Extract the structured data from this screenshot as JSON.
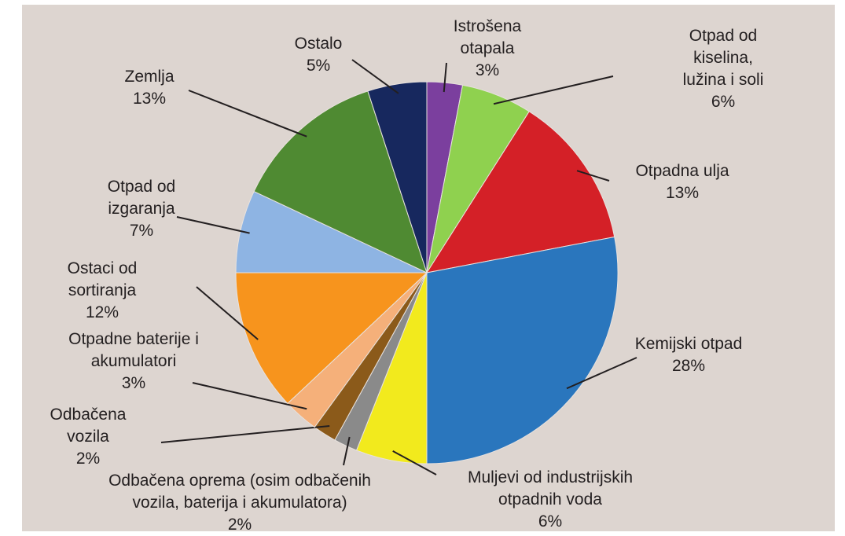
{
  "chart_data": {
    "type": "pie",
    "categories": [
      "Istrošena\notapala",
      "Otpad od kiselina,\nlužina i soli",
      "Otpadna ulja",
      "Kemijski otpad",
      "Muljevi od industrijskih\notpadnih voda",
      "Odbačena oprema (osim odbačenih\nvozila, baterija i akumulatora)",
      "Odbačena\nvozila",
      "Otpadne baterije i\nakumulatori",
      "Ostaci od\nsortiranja",
      "Otpad od\nizgaranja",
      "Zemlja",
      "Ostalo"
    ],
    "values": [
      3,
      6,
      13,
      28,
      6,
      2,
      2,
      3,
      12,
      7,
      13,
      5
    ],
    "value_labels": [
      "3%",
      "6%",
      "13%",
      "28%",
      "6%",
      "2%",
      "2%",
      "3%",
      "12%",
      "7%",
      "13%",
      "5%"
    ],
    "colors": [
      "#7b3f9e",
      "#8fd14f",
      "#d42027",
      "#2a76bd",
      "#f2ea1d",
      "#8a8a8a",
      "#8b5a1a",
      "#f5b07a",
      "#f7941d",
      "#8eb4e3",
      "#4f8a32",
      "#17285e"
    ]
  }
}
